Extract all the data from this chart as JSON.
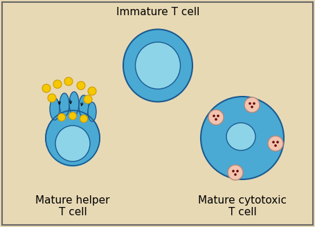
{
  "bg_color": "#e8d9b5",
  "border_color": "#666666",
  "cell_blue_dark": "#2a7fc0",
  "cell_blue_medium": "#4aaad4",
  "cell_blue_light": "#8dd4e8",
  "cell_blue_inner_light": "#aadde8",
  "yellow_color": "#f5c800",
  "yellow_outline": "#cc9900",
  "granule_fill": "#f2c4b0",
  "granule_outline": "#b88878",
  "granule_dot": "#660000",
  "title": "Immature T cell",
  "label_helper": "Mature helper\nT cell",
  "label_cytotoxic": "Mature cytotoxic\nT cell",
  "font_size": 11,
  "figsize": [
    4.55,
    3.29
  ],
  "dpi": 100
}
